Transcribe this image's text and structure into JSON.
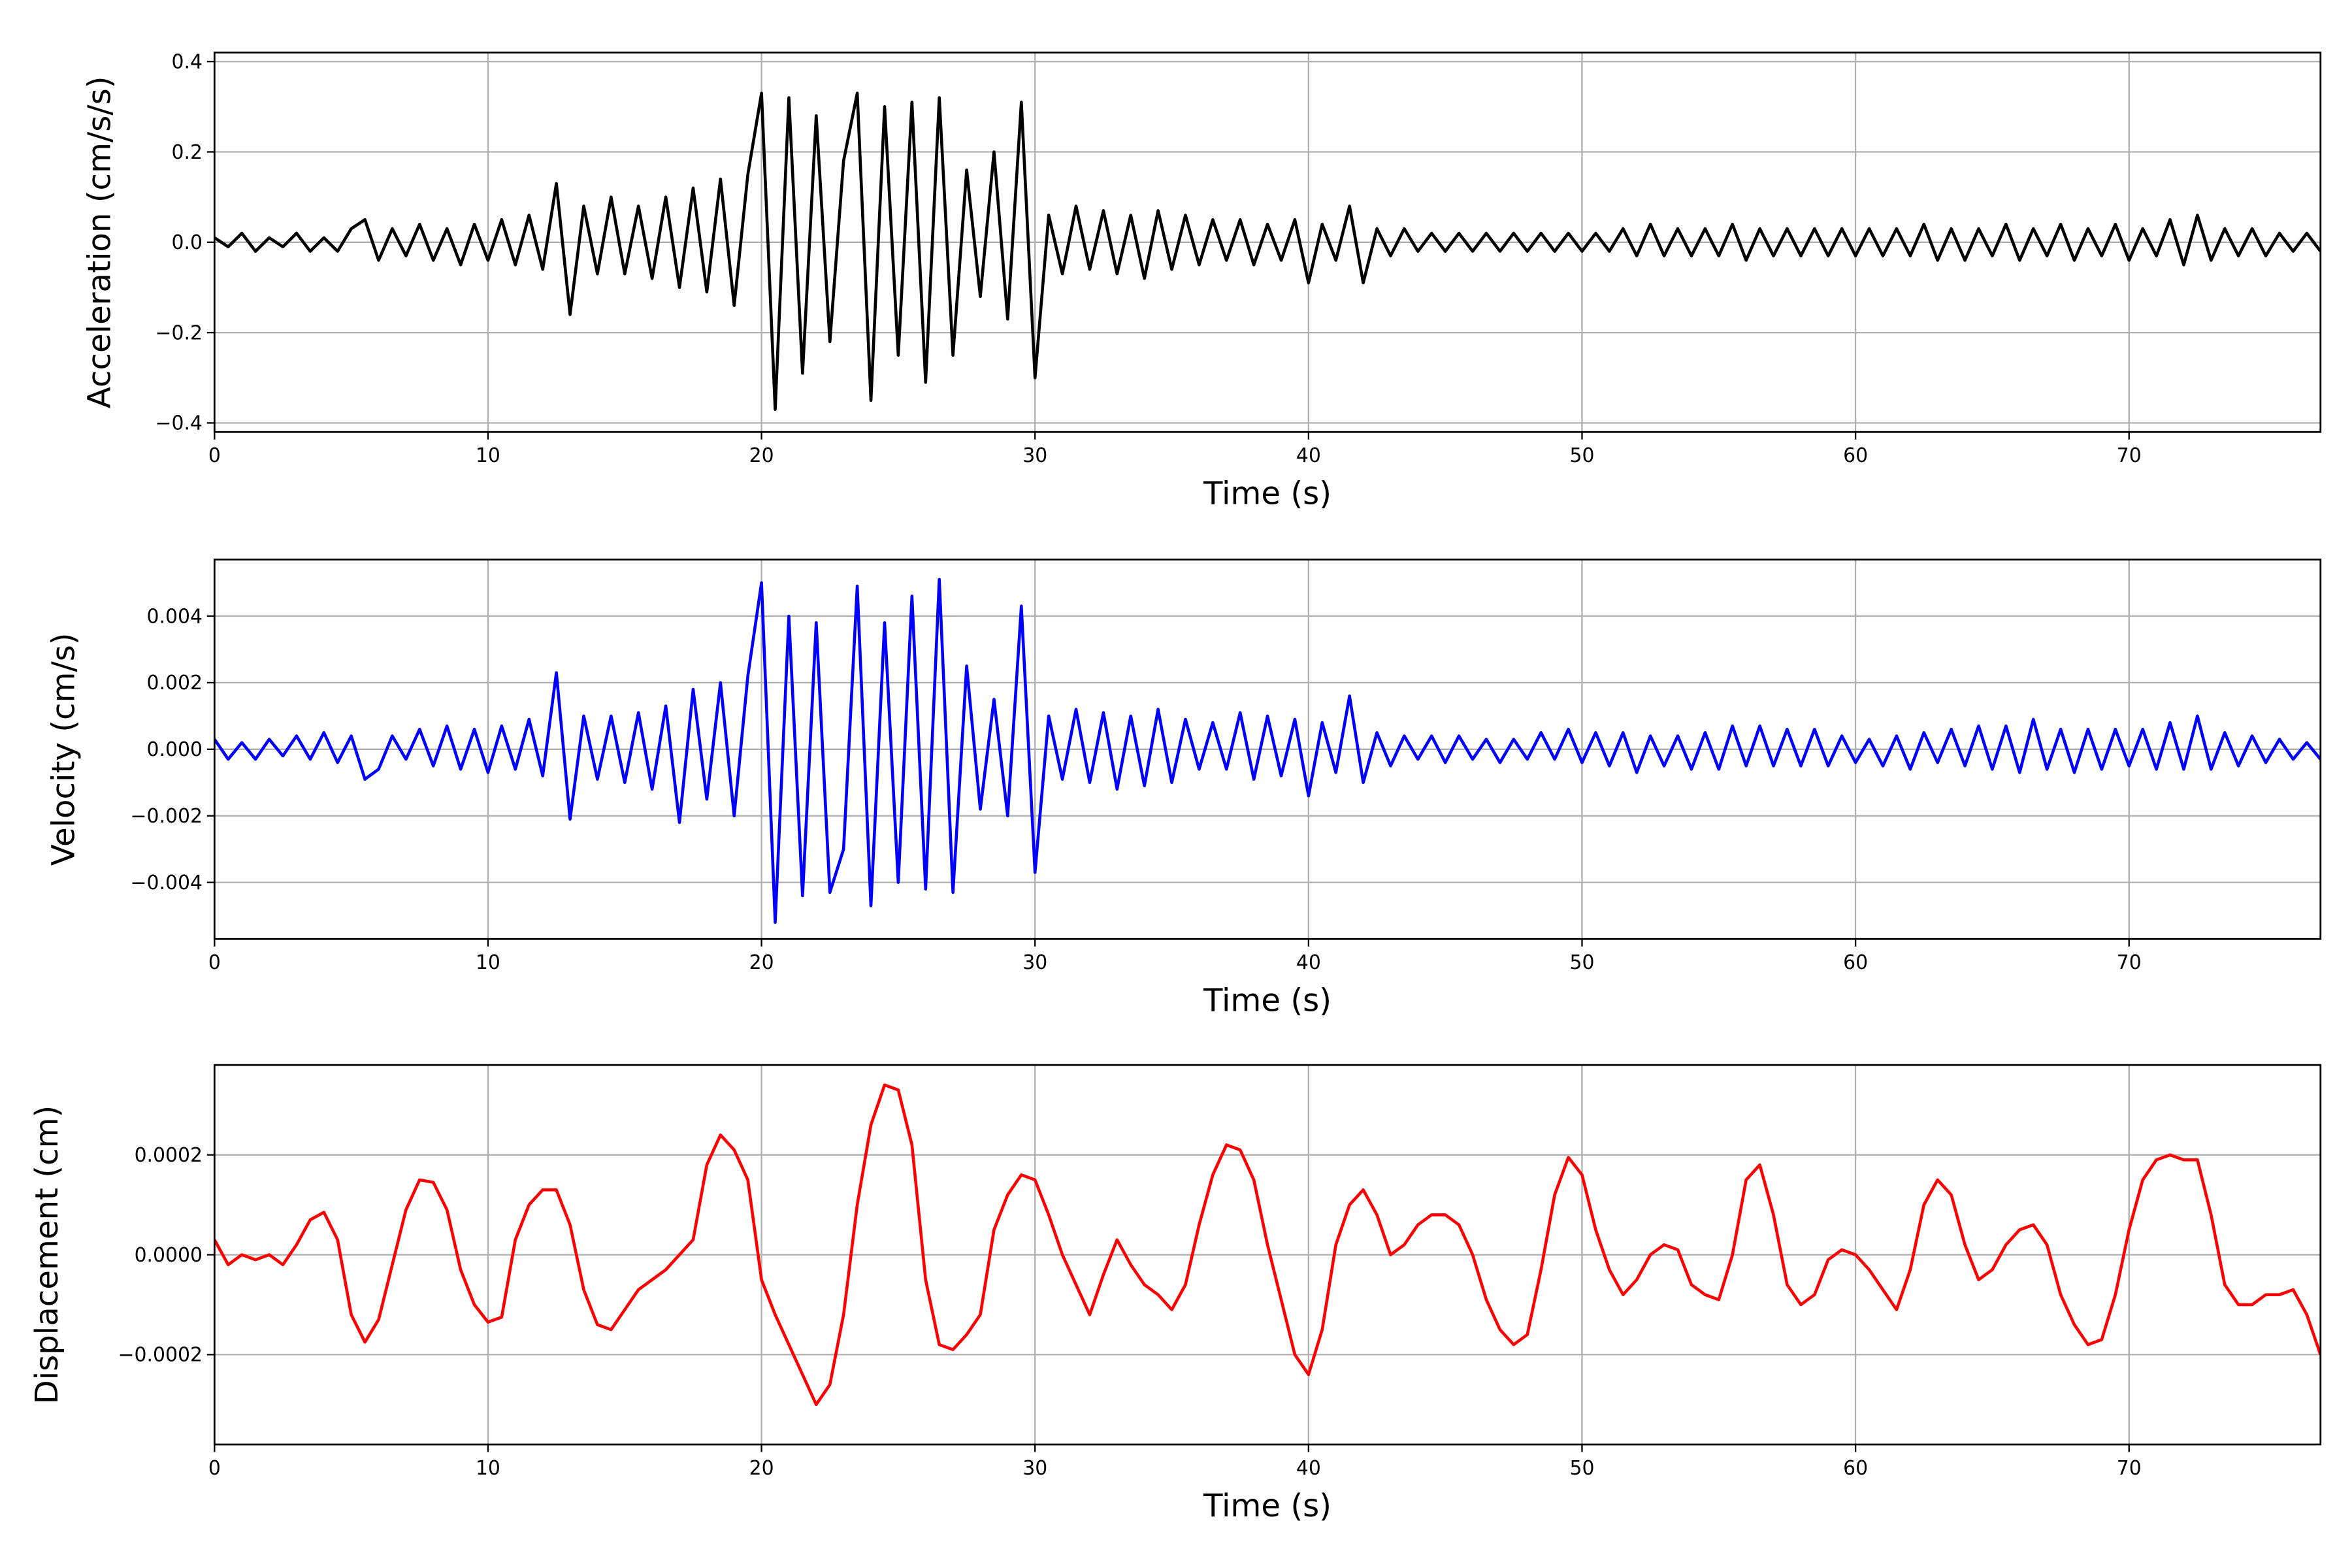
{
  "chart_data": [
    {
      "type": "line",
      "xlabel": "Time (s)",
      "ylabel": "Acceleration (cm/s/s)",
      "color": "#000000",
      "grid": true,
      "xlim": [
        0,
        77
      ],
      "xticks": [
        0,
        10,
        20,
        30,
        40,
        50,
        60,
        70
      ],
      "ylim": [
        -0.42,
        0.42
      ],
      "yticks": [
        {
          "value": -0.4,
          "label": "−0.4"
        },
        {
          "value": -0.2,
          "label": "−0.2"
        },
        {
          "value": 0,
          "label": "0.0"
        },
        0.2,
        0.4
      ],
      "x": [
        0,
        0.5,
        1,
        1.5,
        2,
        2.5,
        3,
        3.5,
        4,
        4.5,
        5,
        5.5,
        6,
        6.5,
        7,
        7.5,
        8,
        8.5,
        9,
        9.5,
        10,
        10.5,
        11,
        11.5,
        12,
        12.5,
        13,
        13.5,
        14,
        14.5,
        15,
        15.5,
        16,
        16.5,
        17,
        17.5,
        18,
        18.5,
        19,
        19.5,
        20,
        20.5,
        21,
        21.5,
        22,
        22.5,
        23,
        23.5,
        24,
        24.5,
        25,
        25.5,
        26,
        26.5,
        27,
        27.5,
        28,
        28.5,
        29,
        29.5,
        30,
        30.5,
        31,
        31.5,
        32,
        32.5,
        33,
        33.5,
        34,
        34.5,
        35,
        35.5,
        36,
        36.5,
        37,
        37.5,
        38,
        38.5,
        39,
        39.5,
        40,
        40.5,
        41,
        41.5,
        42,
        42.5,
        43,
        43.5,
        44,
        44.5,
        45,
        45.5,
        46,
        46.5,
        47,
        47.5,
        48,
        48.5,
        49,
        49.5,
        50,
        50.5,
        51,
        51.5,
        52,
        52.5,
        53,
        53.5,
        54,
        54.5,
        55,
        55.5,
        56,
        56.5,
        57,
        57.5,
        58,
        58.5,
        59,
        59.5,
        60,
        60.5,
        61,
        61.5,
        62,
        62.5,
        63,
        63.5,
        64,
        64.5,
        65,
        65.5,
        66,
        66.5,
        67,
        67.5,
        68,
        68.5,
        69,
        69.5,
        70,
        70.5,
        71,
        71.5,
        72,
        72.5,
        73,
        73.5,
        74,
        74.5,
        75,
        75.5,
        76,
        76.5,
        77
      ],
      "values": [
        0.01,
        -0.01,
        0.02,
        -0.02,
        0.01,
        -0.01,
        0.02,
        -0.02,
        0.01,
        -0.02,
        0.03,
        0.05,
        -0.04,
        0.03,
        -0.03,
        0.04,
        -0.04,
        0.03,
        -0.05,
        0.04,
        -0.04,
        0.05,
        -0.05,
        0.06,
        -0.06,
        0.13,
        -0.16,
        0.08,
        -0.07,
        0.1,
        -0.07,
        0.08,
        -0.08,
        0.1,
        -0.1,
        0.12,
        -0.11,
        0.14,
        -0.14,
        0.15,
        0.33,
        -0.37,
        0.32,
        -0.29,
        0.28,
        -0.22,
        0.18,
        0.33,
        -0.35,
        0.3,
        -0.25,
        0.31,
        -0.31,
        0.32,
        -0.25,
        0.16,
        -0.12,
        0.2,
        -0.17,
        0.31,
        -0.3,
        0.06,
        -0.07,
        0.08,
        -0.06,
        0.07,
        -0.07,
        0.06,
        -0.08,
        0.07,
        -0.06,
        0.06,
        -0.05,
        0.05,
        -0.04,
        0.05,
        -0.05,
        0.04,
        -0.04,
        0.05,
        -0.09,
        0.04,
        -0.04,
        0.08,
        -0.09,
        0.03,
        -0.03,
        0.03,
        -0.02,
        0.02,
        -0.02,
        0.02,
        -0.02,
        0.02,
        -0.02,
        0.02,
        -0.02,
        0.02,
        -0.02,
        0.02,
        -0.02,
        0.02,
        -0.02,
        0.03,
        -0.03,
        0.04,
        -0.03,
        0.03,
        -0.03,
        0.03,
        -0.03,
        0.04,
        -0.04,
        0.03,
        -0.03,
        0.03,
        -0.03,
        0.03,
        -0.03,
        0.03,
        -0.03,
        0.03,
        -0.03,
        0.03,
        -0.03,
        0.04,
        -0.04,
        0.03,
        -0.04,
        0.03,
        -0.03,
        0.04,
        -0.04,
        0.03,
        -0.03,
        0.04,
        -0.04,
        0.03,
        -0.03,
        0.04,
        -0.04,
        0.03,
        -0.03,
        0.05,
        -0.05,
        0.06,
        -0.04,
        0.03,
        -0.03,
        0.03,
        -0.03,
        0.02,
        -0.02,
        0.02,
        -0.02
      ]
    },
    {
      "type": "line",
      "xlabel": "Time (s)",
      "ylabel": "Velocity (cm/s)",
      "color": "#0000ff",
      "grid": true,
      "xlim": [
        0,
        77
      ],
      "xticks": [
        0,
        10,
        20,
        30,
        40,
        50,
        60,
        70
      ],
      "ylim": [
        -0.0057,
        0.0057
      ],
      "yticks": [
        {
          "value": -0.004,
          "label": "−0.004"
        },
        {
          "value": -0.002,
          "label": "−0.002"
        },
        {
          "value": 0,
          "label": "0.000"
        },
        0.002,
        0.004
      ],
      "x": [
        0,
        0.5,
        1,
        1.5,
        2,
        2.5,
        3,
        3.5,
        4,
        4.5,
        5,
        5.5,
        6,
        6.5,
        7,
        7.5,
        8,
        8.5,
        9,
        9.5,
        10,
        10.5,
        11,
        11.5,
        12,
        12.5,
        13,
        13.5,
        14,
        14.5,
        15,
        15.5,
        16,
        16.5,
        17,
        17.5,
        18,
        18.5,
        19,
        19.5,
        20,
        20.5,
        21,
        21.5,
        22,
        22.5,
        23,
        23.5,
        24,
        24.5,
        25,
        25.5,
        26,
        26.5,
        27,
        27.5,
        28,
        28.5,
        29,
        29.5,
        30,
        30.5,
        31,
        31.5,
        32,
        32.5,
        33,
        33.5,
        34,
        34.5,
        35,
        35.5,
        36,
        36.5,
        37,
        37.5,
        38,
        38.5,
        39,
        39.5,
        40,
        40.5,
        41,
        41.5,
        42,
        42.5,
        43,
        43.5,
        44,
        44.5,
        45,
        45.5,
        46,
        46.5,
        47,
        47.5,
        48,
        48.5,
        49,
        49.5,
        50,
        50.5,
        51,
        51.5,
        52,
        52.5,
        53,
        53.5,
        54,
        54.5,
        55,
        55.5,
        56,
        56.5,
        57,
        57.5,
        58,
        58.5,
        59,
        59.5,
        60,
        60.5,
        61,
        61.5,
        62,
        62.5,
        63,
        63.5,
        64,
        64.5,
        65,
        65.5,
        66,
        66.5,
        67,
        67.5,
        68,
        68.5,
        69,
        69.5,
        70,
        70.5,
        71,
        71.5,
        72,
        72.5,
        73,
        73.5,
        74,
        74.5,
        75,
        75.5,
        76,
        76.5,
        77
      ],
      "values": [
        0.0003,
        -0.0003,
        0.0002,
        -0.0003,
        0.0003,
        -0.0002,
        0.0004,
        -0.0003,
        0.0005,
        -0.0004,
        0.0004,
        -0.0009,
        -0.0006,
        0.0004,
        -0.0003,
        0.0006,
        -0.0005,
        0.0007,
        -0.0006,
        0.0006,
        -0.0007,
        0.0007,
        -0.0006,
        0.0009,
        -0.0008,
        0.0023,
        -0.0021,
        0.001,
        -0.0009,
        0.001,
        -0.001,
        0.0011,
        -0.0012,
        0.0013,
        -0.0022,
        0.0018,
        -0.0015,
        0.002,
        -0.002,
        0.0022,
        0.005,
        -0.0052,
        0.004,
        -0.0044,
        0.0038,
        -0.0043,
        -0.003,
        0.0049,
        -0.0047,
        0.0038,
        -0.004,
        0.0046,
        -0.0042,
        0.0051,
        -0.0043,
        0.0025,
        -0.0018,
        0.0015,
        -0.002,
        0.0043,
        -0.0037,
        0.001,
        -0.0009,
        0.0012,
        -0.001,
        0.0011,
        -0.0012,
        0.001,
        -0.0011,
        0.0012,
        -0.001,
        0.0009,
        -0.0006,
        0.0008,
        -0.0006,
        0.0011,
        -0.0009,
        0.001,
        -0.0008,
        0.0009,
        -0.0014,
        0.0008,
        -0.0007,
        0.0016,
        -0.001,
        0.0005,
        -0.0005,
        0.0004,
        -0.0003,
        0.0004,
        -0.0004,
        0.0004,
        -0.0003,
        0.0003,
        -0.0004,
        0.0003,
        -0.0003,
        0.0005,
        -0.0003,
        0.0006,
        -0.0004,
        0.0005,
        -0.0005,
        0.0005,
        -0.0007,
        0.0004,
        -0.0005,
        0.0004,
        -0.0006,
        0.0005,
        -0.0006,
        0.0007,
        -0.0005,
        0.0007,
        -0.0005,
        0.0006,
        -0.0005,
        0.0006,
        -0.0005,
        0.0004,
        -0.0004,
        0.0003,
        -0.0005,
        0.0004,
        -0.0006,
        0.0005,
        -0.0004,
        0.0006,
        -0.0005,
        0.0007,
        -0.0006,
        0.0007,
        -0.0007,
        0.0009,
        -0.0006,
        0.0006,
        -0.0007,
        0.0006,
        -0.0006,
        0.0006,
        -0.0005,
        0.0006,
        -0.0006,
        0.0008,
        -0.0006,
        0.001,
        -0.0006,
        0.0005,
        -0.0005,
        0.0004,
        -0.0004,
        0.0003,
        -0.0003,
        0.0002,
        -0.0003
      ]
    },
    {
      "type": "line",
      "xlabel": "Time (s)",
      "ylabel": "Displacement (cm)",
      "color": "#ff0000",
      "grid": true,
      "xlim": [
        0,
        77
      ],
      "xticks": [
        0,
        10,
        20,
        30,
        40,
        50,
        60,
        70
      ],
      "ylim": [
        -0.00038,
        0.00038
      ],
      "yticks": [
        {
          "value": -0.0002,
          "label": "−0.0002"
        },
        {
          "value": 0,
          "label": "0.0000"
        },
        0.0002
      ],
      "x": [
        0,
        0.5,
        1,
        1.5,
        2,
        2.5,
        3,
        3.5,
        4,
        4.5,
        5,
        5.5,
        6,
        6.5,
        7,
        7.5,
        8,
        8.5,
        9,
        9.5,
        10,
        10.5,
        11,
        11.5,
        12,
        12.5,
        13,
        13.5,
        14,
        14.5,
        15,
        15.5,
        16,
        16.5,
        17,
        17.5,
        18,
        18.5,
        19,
        19.5,
        20,
        20.5,
        21,
        21.5,
        22,
        22.5,
        23,
        23.5,
        24,
        24.5,
        25,
        25.5,
        26,
        26.5,
        27,
        27.5,
        28,
        28.5,
        29,
        29.5,
        30,
        30.5,
        31,
        31.5,
        32,
        32.5,
        33,
        33.5,
        34,
        34.5,
        35,
        35.5,
        36,
        36.5,
        37,
        37.5,
        38,
        38.5,
        39,
        39.5,
        40,
        40.5,
        41,
        41.5,
        42,
        42.5,
        43,
        43.5,
        44,
        44.5,
        45,
        45.5,
        46,
        46.5,
        47,
        47.5,
        48,
        48.5,
        49,
        49.5,
        50,
        50.5,
        51,
        51.5,
        52,
        52.5,
        53,
        53.5,
        54,
        54.5,
        55,
        55.5,
        56,
        56.5,
        57,
        57.5,
        58,
        58.5,
        59,
        59.5,
        60,
        60.5,
        61,
        61.5,
        62,
        62.5,
        63,
        63.5,
        64,
        64.5,
        65,
        65.5,
        66,
        66.5,
        67,
        67.5,
        68,
        68.5,
        69,
        69.5,
        70,
        70.5,
        71,
        71.5,
        72,
        72.5,
        73,
        73.5,
        74,
        74.5,
        75,
        75.5,
        76,
        76.5,
        77
      ],
      "values": [
        3e-05,
        -2e-05,
        0,
        -1e-05,
        0,
        -2e-05,
        2e-05,
        7e-05,
        8.5e-05,
        3e-05,
        -0.00012,
        -0.000175,
        -0.00013,
        -2e-05,
        9e-05,
        0.00015,
        0.000145,
        9e-05,
        -3e-05,
        -0.0001,
        -0.000135,
        -0.000125,
        3e-05,
        0.0001,
        0.00013,
        0.00013,
        6e-05,
        -7e-05,
        -0.00014,
        -0.00015,
        -0.00011,
        -7e-05,
        -5e-05,
        -3e-05,
        0,
        3e-05,
        0.00018,
        0.00024,
        0.00021,
        0.00015,
        -5e-05,
        -0.00012,
        -0.00018,
        -0.00024,
        -0.0003,
        -0.00026,
        -0.00012,
        0.0001,
        0.00026,
        0.00034,
        0.00033,
        0.00022,
        -5e-05,
        -0.00018,
        -0.00019,
        -0.00016,
        -0.00012,
        5e-05,
        0.00012,
        0.00016,
        0.00015,
        8e-05,
        0,
        -6e-05,
        -0.00012,
        -4e-05,
        3e-05,
        -2e-05,
        -6e-05,
        -8e-05,
        -0.00011,
        -6e-05,
        6e-05,
        0.00016,
        0.00022,
        0.00021,
        0.00015,
        2e-05,
        -9e-05,
        -0.0002,
        -0.00024,
        -0.00015,
        2e-05,
        0.0001,
        0.00013,
        8e-05,
        0,
        2e-05,
        6e-05,
        8e-05,
        8e-05,
        6e-05,
        0,
        -9e-05,
        -0.00015,
        -0.00018,
        -0.00016,
        -3e-05,
        0.00012,
        0.000195,
        0.00016,
        5e-05,
        -3e-05,
        -8e-05,
        -5e-05,
        0,
        2e-05,
        1e-05,
        -6e-05,
        -8e-05,
        -9e-05,
        0,
        0.00015,
        0.00018,
        8e-05,
        -6e-05,
        -0.0001,
        -8e-05,
        -1e-05,
        1e-05,
        0,
        -3e-05,
        -7e-05,
        -0.00011,
        -3e-05,
        0.0001,
        0.00015,
        0.00012,
        2e-05,
        -5e-05,
        -3e-05,
        2e-05,
        5e-05,
        6e-05,
        2e-05,
        -8e-05,
        -0.00014,
        -0.00018,
        -0.00017,
        -8e-05,
        5e-05,
        0.00015,
        0.00019,
        0.0002,
        0.00019,
        0.00019,
        8e-05,
        -6e-05,
        -0.0001,
        -0.0001,
        -8e-05,
        -8e-05,
        -7e-05,
        -0.00012,
        -0.0002
      ]
    }
  ]
}
